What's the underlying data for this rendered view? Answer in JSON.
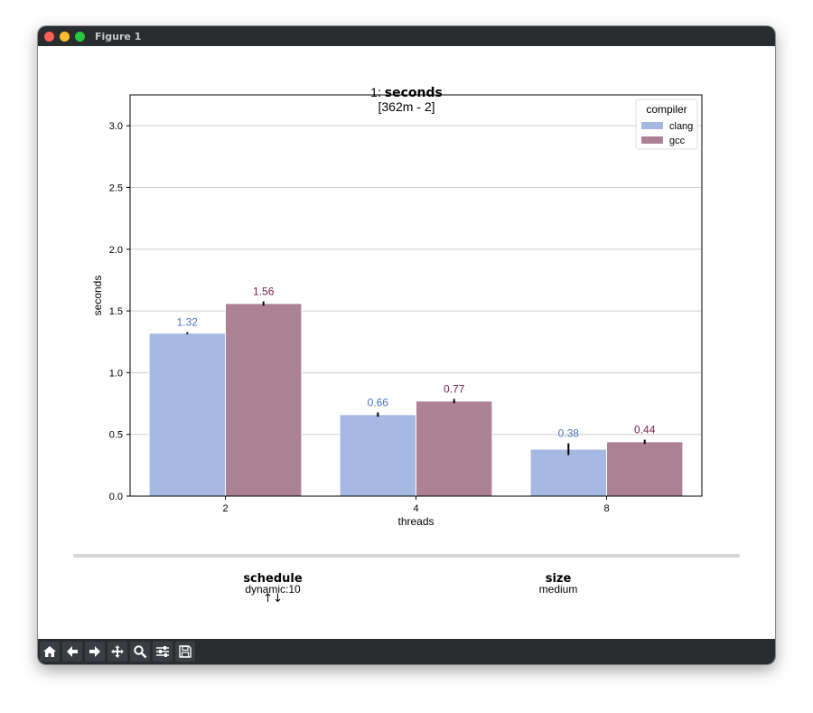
{
  "window": {
    "title": "Figure 1"
  },
  "figure": {
    "title_prefix": "1: ",
    "title_bold": "seconds",
    "subtitle": "[362m - 2]"
  },
  "chart_data": {
    "type": "bar",
    "categories": [
      "2",
      "4",
      "8"
    ],
    "series": [
      {
        "name": "clang",
        "values": [
          1.32,
          0.66,
          0.38
        ],
        "color": "#a6b9e2",
        "label_color": "#4a74c4",
        "err": [
          0.0,
          0.01,
          0.04
        ]
      },
      {
        "name": "gcc",
        "values": [
          1.56,
          0.77,
          0.44
        ],
        "color": "#ad8194",
        "label_color": "#7a1f4a",
        "err": [
          0.01,
          0.01,
          0.01
        ]
      }
    ],
    "data_labels": [
      [
        "1.32",
        "0.66",
        "0.38"
      ],
      [
        "1.56",
        "0.77",
        "0.44"
      ]
    ],
    "xlabel": "threads",
    "ylabel": "seconds",
    "ylim": [
      0,
      3.25
    ],
    "yticks": [
      0.0,
      0.5,
      1.0,
      1.5,
      2.0,
      2.5,
      3.0
    ],
    "ytick_labels": [
      "0.0",
      "0.5",
      "1.0",
      "1.5",
      "2.0",
      "2.5",
      "3.0"
    ],
    "grid": "horizontal",
    "legend": {
      "title": "compiler",
      "position": "top-right"
    }
  },
  "info": {
    "schedule": {
      "name": "schedule",
      "value": "dynamic:10",
      "sort": "↑↓"
    },
    "size": {
      "name": "size",
      "value": "medium"
    }
  },
  "toolbar": [
    {
      "name": "home-icon"
    },
    {
      "name": "back-arrow-icon"
    },
    {
      "name": "forward-arrow-icon"
    },
    {
      "name": "pan-icon"
    },
    {
      "name": "zoom-icon"
    },
    {
      "name": "sliders-icon"
    },
    {
      "name": "save-icon"
    }
  ]
}
